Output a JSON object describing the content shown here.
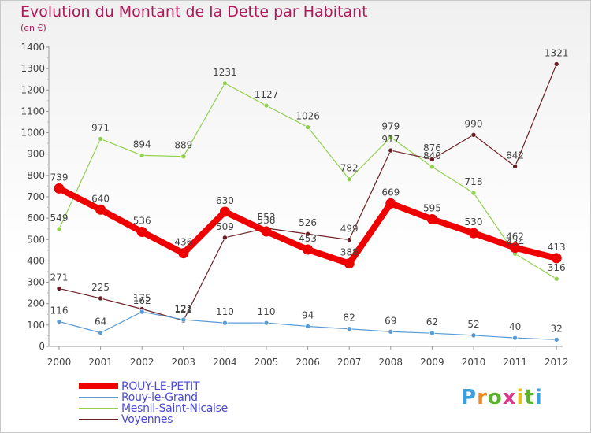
{
  "chart_data": {
    "type": "line",
    "title": "Evolution du Montant de la Dette par Habitant",
    "subtitle": "(en €)",
    "categories": [
      "2000",
      "2001",
      "2002",
      "2003",
      "2004",
      "2005",
      "2006",
      "2007",
      "2008",
      "2009",
      "2010",
      "2011",
      "2012"
    ],
    "ylim": [
      0,
      1400
    ],
    "yticks": [
      0,
      100,
      200,
      300,
      400,
      500,
      600,
      700,
      800,
      900,
      1000,
      1100,
      1200,
      1300,
      1400
    ],
    "grid": false,
    "legend_position": "bottom-left",
    "series": [
      {
        "name": "ROUY-LE-PETIT",
        "color": "#ee0000",
        "values": [
          739,
          640,
          536,
          436,
          630,
          538,
          453,
          388,
          669,
          595,
          530,
          462,
          413
        ]
      },
      {
        "name": "Rouy-le-Grand",
        "color": "#5b9bd5",
        "values": [
          116,
          64,
          162,
          125,
          110,
          110,
          94,
          82,
          69,
          62,
          52,
          40,
          32
        ]
      },
      {
        "name": "Mesnil-Saint-Nicaise",
        "color": "#92d050",
        "values": [
          549,
          971,
          894,
          889,
          1231,
          1127,
          1026,
          782,
          979,
          840,
          718,
          434,
          316
        ]
      },
      {
        "name": "Voyennes",
        "color": "#6b1f24",
        "values": [
          271,
          225,
          175,
          121,
          509,
          553,
          526,
          499,
          917,
          876,
          990,
          842,
          1321
        ]
      }
    ]
  },
  "logo": {
    "letters": [
      "P",
      "r",
      "o",
      "x",
      "i",
      "t",
      "i"
    ],
    "colors": [
      "#3aa0e0",
      "#f08a24",
      "#5bb030",
      "#d93a8c",
      "#e8c020",
      "#5bb030",
      "#3aa0e0"
    ]
  }
}
